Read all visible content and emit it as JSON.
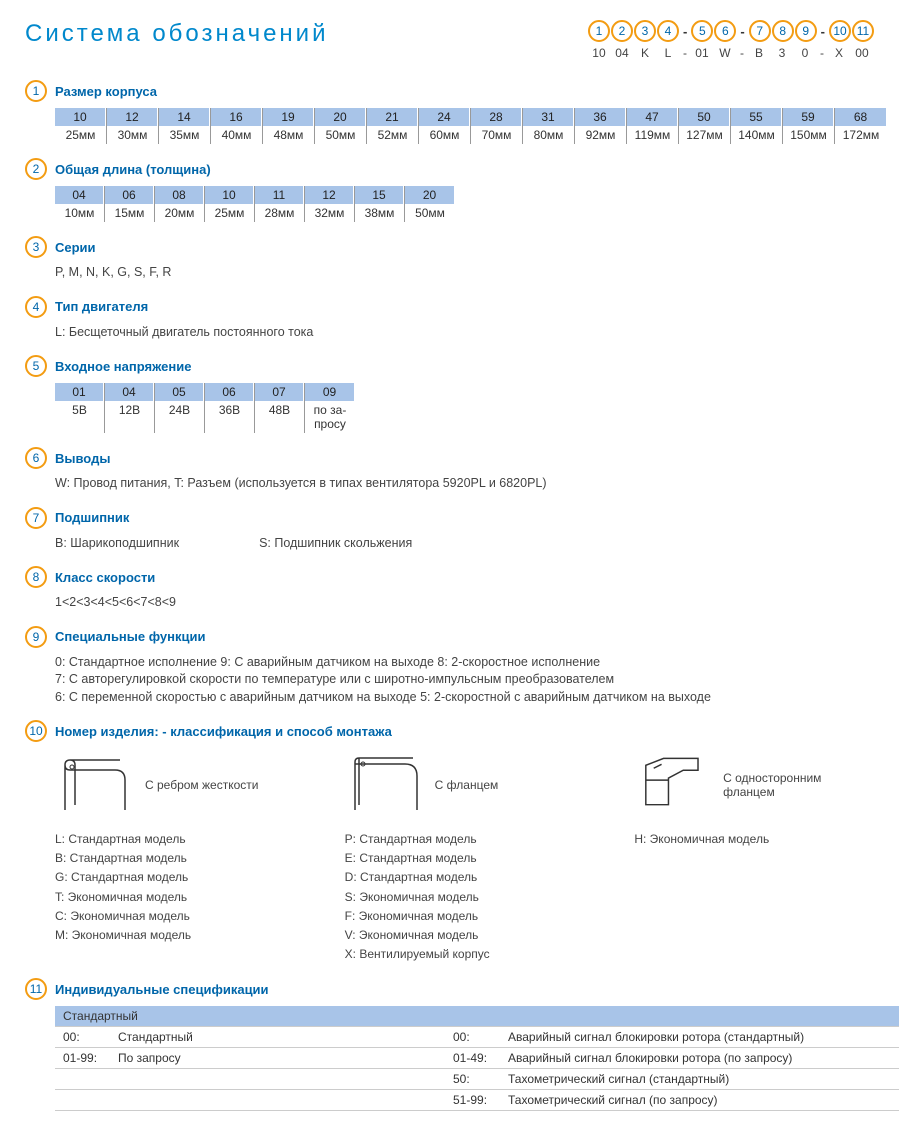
{
  "title": "Система обозначений",
  "code_positions": [
    "1",
    "2",
    "3",
    "4",
    "5",
    "6",
    "7",
    "8",
    "9",
    "10",
    "11"
  ],
  "code_separators_after": [
    3,
    5,
    8
  ],
  "code_example": [
    "10",
    "04",
    "K",
    "L",
    "01",
    "W",
    "B",
    "3",
    "0",
    "X",
    "00"
  ],
  "colors": {
    "accent": "#f39c12",
    "link": "#0066aa",
    "title": "#0088cc",
    "table_header": "#a8c4e8"
  },
  "sections": {
    "s1": {
      "title": "Размер корпуса",
      "table": [
        {
          "c": "10",
          "v": "25мм"
        },
        {
          "c": "12",
          "v": "30мм"
        },
        {
          "c": "14",
          "v": "35мм"
        },
        {
          "c": "16",
          "v": "40мм"
        },
        {
          "c": "19",
          "v": "48мм"
        },
        {
          "c": "20",
          "v": "50мм"
        },
        {
          "c": "21",
          "v": "52мм"
        },
        {
          "c": "24",
          "v": "60мм"
        },
        {
          "c": "28",
          "v": "70мм"
        },
        {
          "c": "31",
          "v": "80мм"
        },
        {
          "c": "36",
          "v": "92мм"
        },
        {
          "c": "47",
          "v": "119мм"
        },
        {
          "c": "50",
          "v": "127мм"
        },
        {
          "c": "55",
          "v": "140мм"
        },
        {
          "c": "59",
          "v": "150мм"
        },
        {
          "c": "68",
          "v": "172мм"
        }
      ]
    },
    "s2": {
      "title": "Общая длина (толщина)",
      "table": [
        {
          "c": "04",
          "v": "10мм"
        },
        {
          "c": "06",
          "v": "15мм"
        },
        {
          "c": "08",
          "v": "20мм"
        },
        {
          "c": "10",
          "v": "25мм"
        },
        {
          "c": "11",
          "v": "28мм"
        },
        {
          "c": "12",
          "v": "32мм"
        },
        {
          "c": "15",
          "v": "38мм"
        },
        {
          "c": "20",
          "v": "50мм"
        }
      ]
    },
    "s3": {
      "title": "Серии",
      "text": "P, M, N, K, G, S, F, R"
    },
    "s4": {
      "title": "Тип двигателя",
      "text": "L: Бесщеточный двигатель постоянного тока"
    },
    "s5": {
      "title": "Входное напряжение",
      "table": [
        {
          "c": "01",
          "v": "5В"
        },
        {
          "c": "04",
          "v": "12В"
        },
        {
          "c": "05",
          "v": "24В"
        },
        {
          "c": "06",
          "v": "36В"
        },
        {
          "c": "07",
          "v": "48В"
        },
        {
          "c": "09",
          "v": "по за-\nпросу"
        }
      ]
    },
    "s6": {
      "title": "Выводы",
      "text": "W: Провод питания, T: Разъем (используется в типах вентилятора  5920PL и 6820PL)"
    },
    "s7": {
      "title": "Подшипник",
      "text_parts": [
        "B: Шарикоподшипник",
        "S: Подшипник скольжения"
      ]
    },
    "s8": {
      "title": "Класс скорости",
      "text": "1<2<3<4<5<6<7<8<9"
    },
    "s9": {
      "title": "Специальные функции",
      "lines": [
        "0: Стандартное исполнение   9:  С аварийным датчиком на выходе   8: 2-скоростное исполнение",
        "7: С авторегулировкой скорости по температуре или с широтно-импульсным преобразователем",
        "6: С переменной скоростью с аварийным датчиком на выходе   5: 2-скоростной с аварийным датчиком на выходе"
      ]
    },
    "s10": {
      "title": "Номер изделия: - классификация  и способ монтажа",
      "columns": [
        {
          "caption": "С ребром жесткости",
          "models": [
            "L:  Стандартная модель",
            "B:  Стандартная модель",
            "G:  Стандартная модель",
            "T:  Экономичная модель",
            "C:  Экономичная модель",
            "M:  Экономичная модель"
          ]
        },
        {
          "caption": "С фланцем",
          "models": [
            "P:  Стандартная модель",
            "E:  Стандартная модель",
            "D:  Стандартная модель",
            "S:  Экономичная модель",
            "F:  Экономичная модель",
            "V:  Экономичная модель",
            "X:  Вентилируемый корпус"
          ]
        },
        {
          "caption": "С односторонним фланцем",
          "models": [
            "H:  Экономичная модель"
          ]
        }
      ]
    },
    "s11": {
      "title": "Индивидуальные спецификации",
      "left_header": "Стандартный",
      "left_rows": [
        {
          "k": "00:",
          "v": "Стандартный"
        },
        {
          "k": "01-99:",
          "v": "По запросу"
        }
      ],
      "right_rows": [
        {
          "k": "00:",
          "v": "Аварийный сигнал блокировки ротора (стандартный)"
        },
        {
          "k": "01-49:",
          "v": "Аварийный сигнал блокировки ротора (по запросу)"
        },
        {
          "k": "50:",
          "v": "Тахометрический сигнал (стандартный)"
        },
        {
          "k": "51-99:",
          "v": "Тахометрический сигнал (по запросу)"
        }
      ]
    }
  }
}
